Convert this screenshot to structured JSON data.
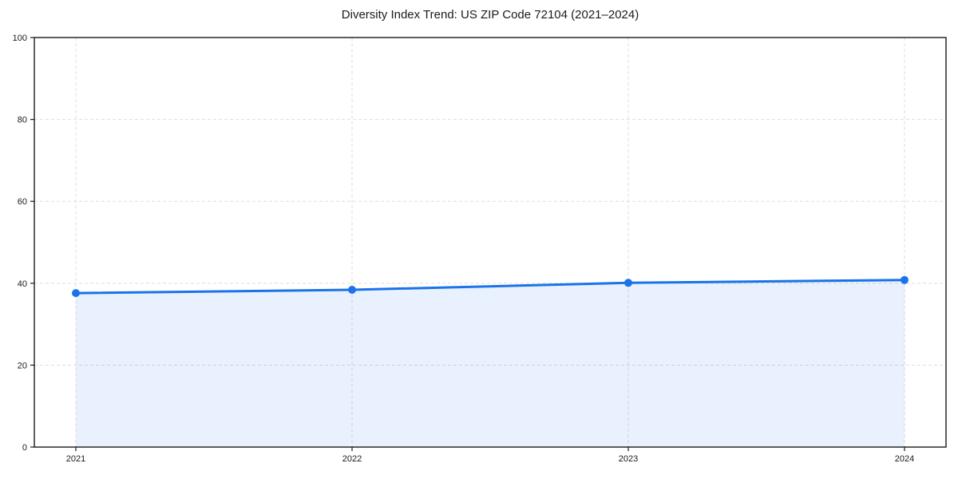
{
  "chart_data": {
    "type": "area",
    "title": "Diversity Index Trend: US ZIP Code 72104 (2021–2024)",
    "categories": [
      "2021",
      "2022",
      "2023",
      "2024"
    ],
    "x": [
      2021,
      2022,
      2023,
      2024
    ],
    "series": [
      {
        "name": "Diversity Index",
        "values": [
          37.6,
          38.4,
          40.1,
          40.8
        ]
      }
    ],
    "xlabel": "",
    "ylabel": "",
    "ylim": [
      0,
      100
    ],
    "yticks": [
      0,
      20,
      40,
      60,
      80,
      100
    ],
    "grid": true,
    "grid_style": "dashed",
    "legend": "none",
    "marker": "circle",
    "colors": {
      "line": "#1a73e8",
      "marker": "#1a73e8",
      "fill": "rgba(26,115,232,0.10)",
      "grid": "#dedede",
      "spine": "#1a1a1a",
      "text": "#1a1a1a",
      "background": "#ffffff"
    }
  }
}
